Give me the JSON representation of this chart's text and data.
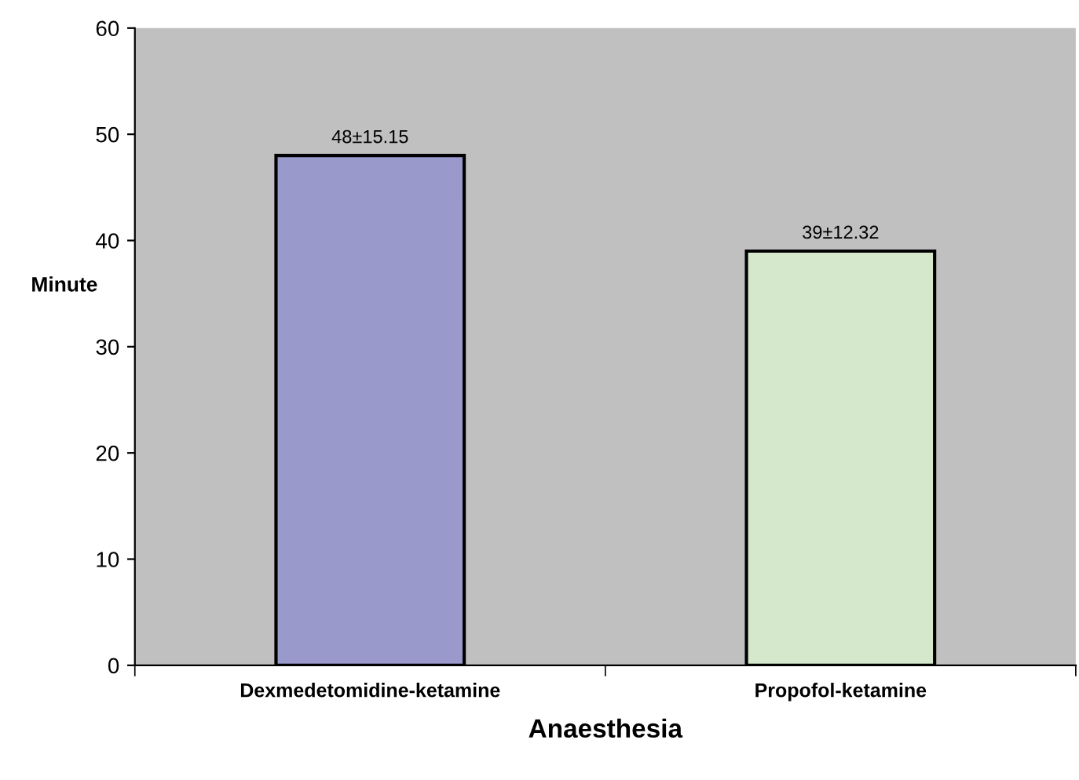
{
  "chart_data": {
    "type": "bar",
    "xlabel": "Anaesthesia",
    "ylabel": "Minute",
    "categories": [
      "Dexmedetomidine-ketamine",
      "Propofol-ketamine"
    ],
    "values": [
      48,
      39
    ],
    "colors": [
      "#9999cc",
      "#d5e8cc"
    ],
    "value_labels": [
      "48±15.15",
      "39±12.32"
    ],
    "ylim": [
      0,
      60
    ],
    "yticks": [
      0,
      10,
      20,
      30,
      40,
      50,
      60
    ],
    "grid": false,
    "legend": false
  }
}
